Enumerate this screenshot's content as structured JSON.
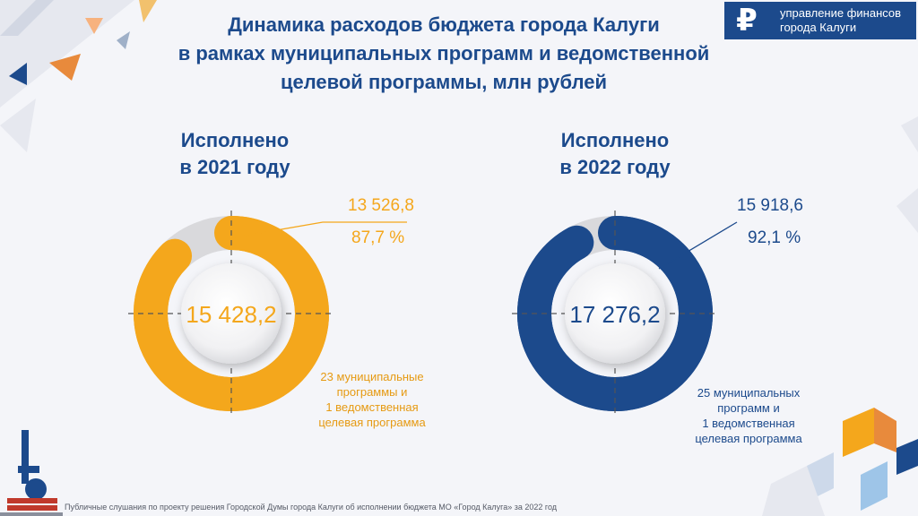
{
  "title_lines": [
    "Динамика расходов бюджета города Калуги",
    "в рамках муниципальных программ и ведомственной",
    "целевой программы, млн рублей"
  ],
  "logo": {
    "symbol": "₽",
    "line1": "управление финансов",
    "line2": "города Калуги"
  },
  "colors": {
    "accent_2021": "#f4a71c",
    "accent_2022": "#1c4a8c",
    "remainder": "#d9d9dc",
    "title": "#1c4a8c"
  },
  "panels": [
    {
      "heading_line1": "Исполнено",
      "heading_line2": "в 2021 году",
      "total_label": "15 428,2",
      "callout_value": "13 526,8",
      "callout_percent": "87,7 %",
      "note_lines": [
        "23 муниципальные",
        "программы и",
        "1 ведомственная",
        "целевая программа"
      ]
    },
    {
      "heading_line1": "Исполнено",
      "heading_line2": "в 2022 году",
      "total_label": "17 276,2",
      "callout_value": "15 918,6",
      "callout_percent": "92,1 %",
      "note_lines": [
        "25 муниципальных",
        "программ и",
        "1 ведомственная",
        "целевая программа"
      ]
    }
  ],
  "chart_data": [
    {
      "type": "pie",
      "title": "Исполнено в 2021 году",
      "total": 15428.2,
      "slices": [
        {
          "label": "13 526,8",
          "value": 13526.8,
          "percent": 87.7,
          "color": "#f4a71c"
        },
        {
          "label": "",
          "value": 1901.4,
          "percent": 12.3,
          "color": "#d9d9dc"
        }
      ]
    },
    {
      "type": "pie",
      "title": "Исполнено в 2022 году",
      "total": 17276.2,
      "slices": [
        {
          "label": "15 918,6",
          "value": 15918.6,
          "percent": 92.1,
          "color": "#1c4a8c"
        },
        {
          "label": "",
          "value": 1357.6,
          "percent": 7.9,
          "color": "#d9d9dc"
        }
      ]
    }
  ],
  "footer": "Публичные слушания по проекту решения Городской Думы города Калуги об исполнении бюджета МО «Город Калуга» за 2022 год"
}
